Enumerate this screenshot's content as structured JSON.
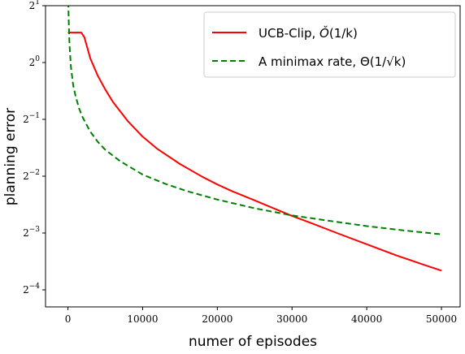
{
  "chart_data": {
    "type": "line",
    "title": "",
    "xlabel": "numer of episodes",
    "ylabel": "planning error",
    "xlim": [
      -3000,
      52500
    ],
    "ylim_log2": [
      -4.3,
      1
    ],
    "yscale": "log2",
    "grid": false,
    "legend_position": "top-right",
    "xticks": [
      0,
      10000,
      20000,
      30000,
      40000,
      50000
    ],
    "xtick_labels": [
      "0",
      "10000",
      "20000",
      "30000",
      "40000",
      "50000"
    ],
    "yticks_exp": [
      -4,
      -3,
      -2,
      -1,
      0,
      1
    ],
    "ytick_base": "2",
    "series": [
      {
        "name": "UCB-Clip, Õ(1/k)",
        "color": "#ff0000",
        "style": "solid",
        "x": [
          0,
          1000,
          1800,
          2200,
          3000,
          4000,
          5000,
          6000,
          8000,
          10000,
          12000,
          15000,
          18000,
          20000,
          22000,
          25000,
          28000,
          30000,
          33000,
          36000,
          40000,
          44000,
          48000,
          50000
        ],
        "y": [
          1.44,
          1.44,
          1.44,
          1.36,
          1.05,
          0.85,
          0.72,
          0.62,
          0.49,
          0.405,
          0.348,
          0.29,
          0.248,
          0.226,
          0.208,
          0.186,
          0.166,
          0.154,
          0.139,
          0.125,
          0.109,
          0.095,
          0.084,
          0.079
        ]
      },
      {
        "name": "A minimax rate, Θ(1/√k)",
        "color": "#008000",
        "style": "dashed",
        "x": [
          50,
          100,
          200,
          400,
          700,
          1000,
          1500,
          2000,
          3000,
          4000,
          5000,
          7000,
          10000,
          13000,
          16000,
          20000,
          25000,
          30000,
          35000,
          40000,
          45000,
          50000
        ],
        "y": [
          2.1,
          1.7,
          1.26,
          0.95,
          0.76,
          0.67,
          0.57,
          0.51,
          0.43,
          0.38,
          0.345,
          0.3,
          0.255,
          0.228,
          0.208,
          0.188,
          0.169,
          0.155,
          0.145,
          0.136,
          0.129,
          0.123
        ]
      }
    ]
  },
  "legend": {
    "items": [
      {
        "prefix": "UCB-Clip, ",
        "math_symbol": "Ǒ",
        "math_rest": "(1/k)",
        "color": "#ff0000",
        "style": "solid"
      },
      {
        "prefix": "A minimax rate, ",
        "math_symbol": "Θ",
        "math_rest": "(1/√k)",
        "color": "#008000",
        "style": "dashed"
      }
    ]
  }
}
